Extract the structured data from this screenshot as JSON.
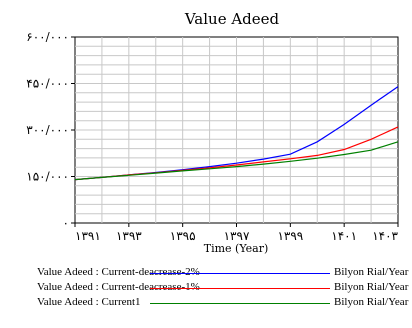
{
  "chart_data": {
    "type": "line",
    "title": "Value Adeed",
    "xlabel": "Time (Year)",
    "ylabel": "",
    "x_ticks": [
      1391,
      1393,
      1395,
      1397,
      1399,
      1401,
      1403
    ],
    "x_tick_labels": [
      "۱۳۹۱",
      "۱۳۹۳",
      "۱۳۹۵",
      "۱۳۹۷",
      "۱۳۹۹",
      "۱۴۰۱",
      "۱۴۰۳"
    ],
    "xlim": [
      1391,
      1403
    ],
    "y_ticks": [
      0,
      150000,
      300000,
      450000,
      600000
    ],
    "y_tick_labels": [
      "۰",
      "۱۵۰/۰۰۰",
      "۳۰۰/۰۰۰",
      "۴۵۰/۰۰۰",
      "۶۰۰/۰۰۰"
    ],
    "ylim": [
      0,
      600000
    ],
    "grid": true,
    "legend_position": "bottom",
    "series": [
      {
        "name": "Value Adeed : Current-deacrease-2%",
        "unit": "Bilyon Rial/Year",
        "color": "#0000ff",
        "x": [
          1391,
          1392,
          1393,
          1394,
          1395,
          1396,
          1397,
          1398,
          1399,
          1400,
          1401,
          1402,
          1403
        ],
        "values": [
          140000,
          147000,
          155000,
          163000,
          172000,
          182000,
          193000,
          206000,
          222000,
          262000,
          318000,
          380000,
          440000
        ]
      },
      {
        "name": "Value Adeed : Current-deacrease-1%",
        "unit": "Bilyon Rial/Year",
        "color": "#ff0000",
        "x": [
          1391,
          1392,
          1393,
          1394,
          1395,
          1396,
          1397,
          1398,
          1399,
          1400,
          1401,
          1402,
          1403
        ],
        "values": [
          140000,
          147000,
          155000,
          162000,
          170000,
          178000,
          187000,
          197000,
          207000,
          218000,
          237000,
          270000,
          310000
        ]
      },
      {
        "name": "Value Adeed : Current1",
        "unit": "Bilyon Rial/Year",
        "color": "#008000",
        "x": [
          1391,
          1392,
          1393,
          1394,
          1395,
          1396,
          1397,
          1398,
          1399,
          1400,
          1401,
          1402,
          1403
        ],
        "values": [
          140000,
          147000,
          154000,
          161000,
          168000,
          175000,
          182000,
          190000,
          199000,
          209000,
          221000,
          235000,
          262000
        ]
      }
    ]
  }
}
